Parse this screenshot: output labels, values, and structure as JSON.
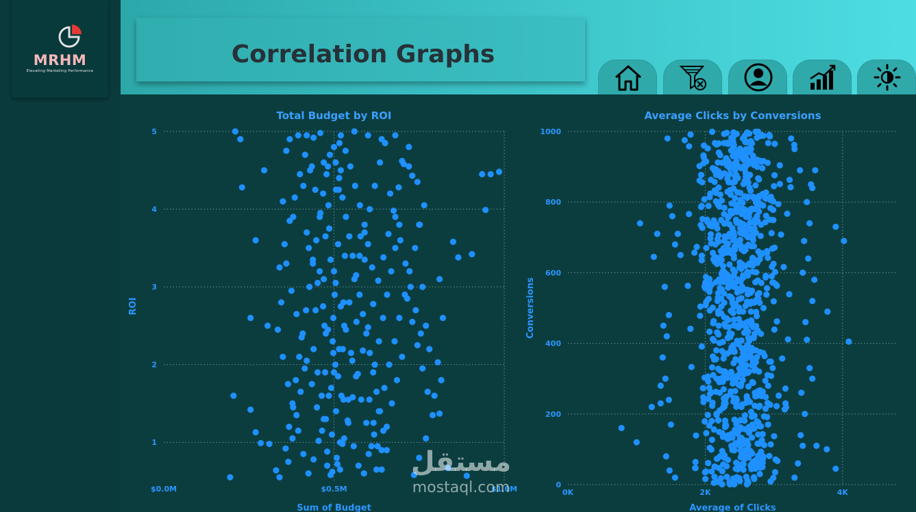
{
  "brand": {
    "name": "MRHM",
    "tagline": "Elevating Marketing Performance",
    "colors": {
      "title": "#f2b8ba",
      "mark_accent": "#e53935",
      "mark_outline": "#e0e0e0"
    }
  },
  "header": {
    "title": "Correlation Graphs"
  },
  "nav": [
    {
      "id": "home",
      "icon": "home-icon"
    },
    {
      "id": "filter",
      "icon": "clear-filter-icon"
    },
    {
      "id": "user",
      "icon": "user-icon"
    },
    {
      "id": "growth",
      "icon": "growth-chart-icon"
    },
    {
      "id": "theme",
      "icon": "brightness-icon"
    }
  ],
  "colors": {
    "background": "#0b3d3f",
    "header_gradient": [
      "#2ca8aa",
      "#4ddde3"
    ],
    "accent": "#1e90ff",
    "nav_button": "#30a9ab"
  },
  "chart_data": [
    {
      "type": "scatter",
      "title": "Total Budget by ROI",
      "xlabel": "Sum of Budget",
      "ylabel": "ROI",
      "xlim": [
        0,
        1000000
      ],
      "ylim": [
        0.5,
        5
      ],
      "xticks": [
        {
          "v": 0,
          "label": "$0.0M"
        },
        {
          "v": 500000,
          "label": "$0.5M"
        },
        {
          "v": 1000000,
          "label": "$1.0M"
        }
      ],
      "yticks": [
        {
          "v": 1,
          "label": "1"
        },
        {
          "v": 2,
          "label": "2"
        },
        {
          "v": 3,
          "label": "3"
        },
        {
          "v": 4,
          "label": "4"
        },
        {
          "v": 5,
          "label": "5"
        }
      ],
      "grid": true,
      "point_color": "#1e90ff",
      "points": [
        [
          210000,
          5.0
        ],
        [
          225000,
          4.9
        ],
        [
          230000,
          4.28
        ],
        [
          270000,
          3.6
        ],
        [
          255000,
          2.6
        ],
        [
          205000,
          1.6
        ],
        [
          195000,
          0.55
        ],
        [
          255000,
          1.42
        ],
        [
          270000,
          1.13
        ],
        [
          285000,
          0.99
        ],
        [
          295000,
          4.5
        ],
        [
          305000,
          2.5
        ],
        [
          310000,
          0.98
        ],
        [
          330000,
          0.64
        ],
        [
          340000,
          0.55
        ],
        [
          360000,
          4.75
        ],
        [
          370000,
          4.9
        ],
        [
          395000,
          4.95
        ],
        [
          420000,
          4.95
        ],
        [
          440000,
          4.92
        ],
        [
          460000,
          4.98
        ],
        [
          350000,
          4.1
        ],
        [
          380000,
          3.9
        ],
        [
          410000,
          4.3
        ],
        [
          435000,
          4.55
        ],
        [
          470000,
          4.6
        ],
        [
          500000,
          4.8
        ],
        [
          520000,
          4.95
        ],
        [
          560000,
          5.0
        ],
        [
          600000,
          4.95
        ],
        [
          640000,
          4.9
        ],
        [
          680000,
          4.95
        ],
        [
          700000,
          4.62
        ],
        [
          720000,
          4.55
        ],
        [
          730000,
          4.43
        ],
        [
          935000,
          4.45
        ],
        [
          960000,
          4.45
        ],
        [
          985000,
          4.48
        ],
        [
          945000,
          3.99
        ],
        [
          905000,
          3.42
        ],
        [
          865000,
          3.38
        ],
        [
          850000,
          3.58
        ],
        [
          810000,
          3.1
        ],
        [
          820000,
          2.6
        ],
        [
          805000,
          2.03
        ],
        [
          815000,
          1.8
        ],
        [
          810000,
          1.37
        ],
        [
          835000,
          0.67
        ],
        [
          890000,
          0.57
        ],
        [
          795000,
          1.6
        ],
        [
          780000,
          2.2
        ],
        [
          770000,
          2.5
        ],
        [
          760000,
          3.0
        ],
        [
          750000,
          3.8
        ],
        [
          765000,
          4.05
        ],
        [
          745000,
          4.35
        ],
        [
          360000,
          3.3
        ],
        [
          345000,
          2.8
        ],
        [
          335000,
          2.45
        ],
        [
          350000,
          2.1
        ],
        [
          365000,
          1.75
        ],
        [
          380000,
          1.45
        ],
        [
          395000,
          1.15
        ],
        [
          410000,
          0.85
        ],
        [
          425000,
          0.6
        ],
        [
          440000,
          0.78
        ],
        [
          455000,
          1.02
        ],
        [
          470000,
          1.3
        ],
        [
          485000,
          1.6
        ],
        [
          500000,
          1.9
        ],
        [
          515000,
          2.2
        ],
        [
          530000,
          2.5
        ],
        [
          545000,
          2.8
        ],
        [
          560000,
          3.1
        ],
        [
          575000,
          3.4
        ],
        [
          590000,
          3.7
        ],
        [
          605000,
          4.0
        ],
        [
          620000,
          4.3
        ],
        [
          635000,
          4.6
        ],
        [
          650000,
          4.85
        ],
        [
          665000,
          4.2
        ],
        [
          680000,
          3.9
        ],
        [
          695000,
          3.6
        ],
        [
          710000,
          3.3
        ],
        [
          725000,
          3.0
        ],
        [
          740000,
          2.7
        ],
        [
          755000,
          2.4
        ],
        [
          700000,
          2.1
        ],
        [
          685000,
          1.8
        ],
        [
          670000,
          1.5
        ],
        [
          655000,
          1.2
        ],
        [
          640000,
          0.9
        ],
        [
          625000,
          0.65
        ],
        [
          610000,
          0.95
        ],
        [
          595000,
          1.25
        ],
        [
          580000,
          1.55
        ],
        [
          565000,
          1.85
        ],
        [
          550000,
          2.15
        ],
        [
          535000,
          2.45
        ],
        [
          520000,
          2.75
        ],
        [
          505000,
          3.05
        ],
        [
          490000,
          3.35
        ],
        [
          475000,
          3.65
        ],
        [
          460000,
          3.95
        ],
        [
          445000,
          4.25
        ],
        [
          430000,
          4.5
        ],
        [
          415000,
          4.7
        ],
        [
          400000,
          4.45
        ],
        [
          385000,
          4.15
        ],
        [
          370000,
          3.85
        ],
        [
          355000,
          3.55
        ],
        [
          340000,
          3.25
        ],
        [
          375000,
          2.95
        ],
        [
          390000,
          2.65
        ],
        [
          405000,
          2.35
        ],
        [
          420000,
          2.05
        ],
        [
          435000,
          1.75
        ],
        [
          450000,
          1.45
        ],
        [
          465000,
          1.15
        ],
        [
          480000,
          0.88
        ],
        [
          495000,
          0.62
        ],
        [
          510000,
          0.72
        ],
        [
          525000,
          0.98
        ],
        [
          540000,
          1.28
        ],
        [
          555000,
          1.58
        ],
        [
          570000,
          1.88
        ],
        [
          585000,
          2.18
        ],
        [
          600000,
          2.48
        ],
        [
          615000,
          2.78
        ],
        [
          630000,
          3.08
        ],
        [
          645000,
          3.38
        ],
        [
          660000,
          3.68
        ],
        [
          675000,
          3.98
        ],
        [
          690000,
          4.28
        ],
        [
          705000,
          4.58
        ],
        [
          720000,
          4.8
        ],
        [
          715000,
          2.85
        ],
        [
          730000,
          2.55
        ],
        [
          745000,
          2.25
        ],
        [
          760000,
          1.95
        ],
        [
          775000,
          1.65
        ],
        [
          790000,
          1.35
        ],
        [
          770000,
          1.05
        ],
        [
          750000,
          0.8
        ],
        [
          735000,
          0.58
        ],
        [
          420000,
          3.7
        ],
        [
          438000,
          3.35
        ],
        [
          452000,
          3.05
        ],
        [
          468000,
          2.75
        ],
        [
          482000,
          2.45
        ],
        [
          498000,
          2.15
        ],
        [
          512000,
          1.85
        ],
        [
          528000,
          1.55
        ],
        [
          542000,
          1.25
        ],
        [
          558000,
          0.95
        ],
        [
          572000,
          0.7
        ],
        [
          588000,
          0.6
        ],
        [
          602000,
          0.85
        ],
        [
          618000,
          1.1
        ],
        [
          632000,
          1.4
        ],
        [
          648000,
          1.7
        ],
        [
          662000,
          2.0
        ],
        [
          678000,
          2.3
        ],
        [
          692000,
          2.6
        ],
        [
          708000,
          2.9
        ],
        [
          722000,
          3.2
        ],
        [
          738000,
          3.5
        ],
        [
          752000,
          3.8
        ],
        [
          505000,
          4.6
        ],
        [
          515000,
          4.4
        ],
        [
          525000,
          4.15
        ],
        [
          535000,
          3.9
        ],
        [
          545000,
          3.65
        ],
        [
          555000,
          3.4
        ],
        [
          565000,
          3.15
        ],
        [
          575000,
          2.9
        ],
        [
          585000,
          2.65
        ],
        [
          595000,
          2.4
        ],
        [
          605000,
          2.15
        ],
        [
          615000,
          1.9
        ],
        [
          625000,
          1.65
        ],
        [
          635000,
          1.4
        ],
        [
          645000,
          1.15
        ],
        [
          655000,
          0.9
        ],
        [
          488000,
          4.7
        ],
        [
          478000,
          4.45
        ],
        [
          468000,
          4.2
        ],
        [
          458000,
          3.9
        ],
        [
          448000,
          3.6
        ],
        [
          438000,
          3.3
        ],
        [
          428000,
          3.0
        ],
        [
          418000,
          2.7
        ],
        [
          408000,
          2.4
        ],
        [
          398000,
          2.1
        ],
        [
          388000,
          1.8
        ],
        [
          378000,
          1.5
        ],
        [
          368000,
          1.2
        ],
        [
          358000,
          0.92
        ],
        [
          500000,
          3.2
        ],
        [
          502000,
          2.9
        ],
        [
          498000,
          2.6
        ],
        [
          496000,
          2.3
        ],
        [
          504000,
          2.0
        ],
        [
          492000,
          1.7
        ],
        [
          506000,
          1.4
        ],
        [
          494000,
          1.1
        ],
        [
          508000,
          0.8
        ],
        [
          490000,
          0.58
        ],
        [
          486000,
          3.75
        ],
        [
          512000,
          3.55
        ],
        [
          484000,
          4.05
        ],
        [
          514000,
          4.25
        ],
        [
          482000,
          4.55
        ],
        [
          516000,
          4.85
        ],
        [
          480000,
          0.7
        ],
        [
          518000,
          1.0
        ],
        [
          476000,
          1.3
        ],
        [
          522000,
          1.6
        ],
        [
          474000,
          1.9
        ],
        [
          526000,
          2.2
        ],
        [
          472000,
          2.5
        ],
        [
          528000,
          2.8
        ],
        [
          470000,
          3.1
        ],
        [
          532000,
          3.4
        ],
        [
          600000,
          3.55
        ],
        [
          612000,
          3.25
        ],
        [
          578000,
          3.65
        ],
        [
          590000,
          3.35
        ],
        [
          566000,
          2.55
        ],
        [
          554000,
          2.05
        ],
        [
          542000,
          1.55
        ],
        [
          530000,
          1.05
        ],
        [
          518000,
          0.65
        ],
        [
          440000,
          2.2
        ],
        [
          452000,
          1.9
        ],
        [
          464000,
          1.6
        ],
        [
          476000,
          2.4
        ],
        [
          446000,
          2.7
        ],
        [
          458000,
          3.2
        ],
        [
          426000,
          3.5
        ],
        [
          414000,
          1.95
        ],
        [
          402000,
          1.65
        ],
        [
          390000,
          1.35
        ],
        [
          378000,
          1.05
        ],
        [
          366000,
          0.75
        ],
        [
          620000,
          2.0
        ],
        [
          632000,
          2.3
        ],
        [
          644000,
          2.6
        ],
        [
          656000,
          2.9
        ],
        [
          668000,
          3.2
        ],
        [
          680000,
          3.5
        ],
        [
          692000,
          3.8
        ],
        [
          604000,
          1.55
        ],
        [
          616000,
          1.25
        ],
        [
          628000,
          0.95
        ],
        [
          640000,
          0.65
        ],
        [
          548000,
          4.55
        ],
        [
          562000,
          4.3
        ],
        [
          576000,
          4.05
        ],
        [
          590000,
          3.8
        ],
        [
          534000,
          4.75
        ],
        [
          520000,
          4.5
        ],
        [
          506000,
          4.25
        ]
      ]
    },
    {
      "type": "scatter",
      "title": "Average Clicks by Conversions",
      "xlabel": "Average of Clicks",
      "ylabel": "Conversions",
      "xlim": [
        0,
        4800
      ],
      "ylim": [
        0,
        1000
      ],
      "xticks": [
        {
          "v": 0,
          "label": "0K"
        },
        {
          "v": 2000,
          "label": "2K"
        },
        {
          "v": 4000,
          "label": "4K"
        }
      ],
      "yticks": [
        {
          "v": 0,
          "label": "0"
        },
        {
          "v": 200,
          "label": "200"
        },
        {
          "v": 400,
          "label": "400"
        },
        {
          "v": 600,
          "label": "600"
        },
        {
          "v": 800,
          "label": "800"
        },
        {
          "v": 1000,
          "label": "1000"
        }
      ],
      "grid": true,
      "point_color": "#1e90ff",
      "points": [
        [
          1050,
          740
        ],
        [
          1300,
          710
        ],
        [
          1250,
          645
        ],
        [
          780,
          160
        ],
        [
          1000,
          120
        ],
        [
          1220,
          220
        ],
        [
          1350,
          230
        ],
        [
          1450,
          980
        ],
        [
          1700,
          975
        ],
        [
          3900,
          730
        ],
        [
          4020,
          690
        ],
        [
          3780,
          490
        ],
        [
          4090,
          405
        ],
        [
          3560,
          300
        ],
        [
          3620,
          110
        ],
        [
          3770,
          100
        ],
        [
          3900,
          45
        ],
        [
          1480,
          790
        ],
        [
          1520,
          760
        ],
        [
          1600,
          710
        ],
        [
          1560,
          680
        ],
        [
          1640,
          650
        ],
        [
          1410,
          560
        ],
        [
          1470,
          480
        ],
        [
          1390,
          450
        ],
        [
          1440,
          420
        ],
        [
          1380,
          360
        ],
        [
          1420,
          300
        ],
        [
          1350,
          280
        ],
        [
          1470,
          240
        ],
        [
          1500,
          170
        ],
        [
          1430,
          80
        ],
        [
          1480,
          40
        ],
        [
          1560,
          20
        ],
        [
          3450,
          200
        ],
        [
          3400,
          260
        ],
        [
          3520,
          330
        ],
        [
          3480,
          410
        ],
        [
          3560,
          520
        ],
        [
          3420,
          600
        ],
        [
          3500,
          640
        ],
        [
          3440,
          690
        ],
        [
          3520,
          740
        ],
        [
          3480,
          800
        ],
        [
          3540,
          850
        ],
        [
          3380,
          890
        ],
        [
          3300,
          950
        ],
        [
          3250,
          980
        ],
        [
          3600,
          890
        ],
        [
          3560,
          840
        ],
        [
          3590,
          580
        ],
        [
          3460,
          460
        ],
        [
          3390,
          140
        ],
        [
          3350,
          60
        ],
        [
          3300,
          20
        ],
        [
          3420,
          110
        ]
      ],
      "dense_band": {
        "x_range": [
          1600,
          3400
        ],
        "y_range": [
          0,
          1000
        ],
        "center": 2500
      }
    }
  ],
  "watermark": {
    "arabic": "مستقل",
    "latin": "mostaql.com"
  }
}
